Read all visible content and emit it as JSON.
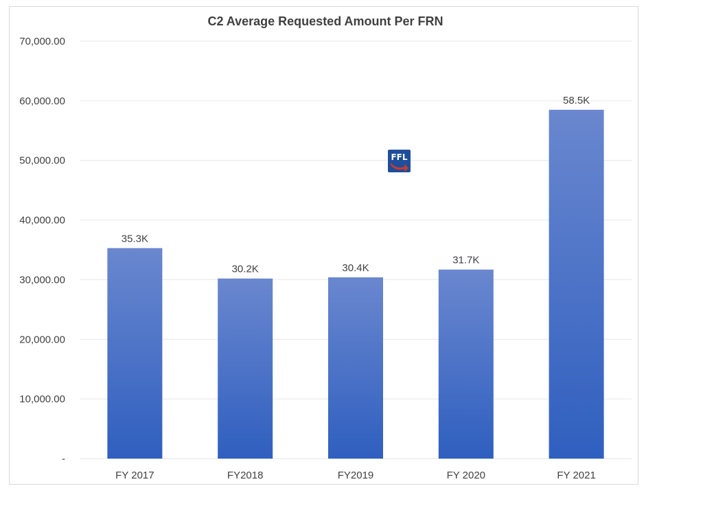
{
  "chart_data": {
    "type": "bar",
    "title": "C2 Average Requested Amount Per FRN",
    "categories": [
      "FY 2017",
      "FY2018",
      "FY2019",
      "FY 2020",
      "FY 2021"
    ],
    "values": [
      35300,
      30200,
      30400,
      31700,
      58500
    ],
    "data_labels": [
      "35.3K",
      "30.2K",
      "30.4K",
      "31.7K",
      "58.5K"
    ],
    "ylim": [
      0,
      70000
    ],
    "yticks": [
      0,
      10000,
      20000,
      30000,
      40000,
      50000,
      60000,
      70000
    ],
    "ytick_labels": [
      "-",
      "10,000.00",
      "20,000.00",
      "30,000.00",
      "40,000.00",
      "50,000.00",
      "60,000.00",
      "70,000.00"
    ],
    "grid": true,
    "legend": "none",
    "colors": {
      "bar_top": "#6a87cf",
      "bar_bottom": "#2f5fbf",
      "grid": "#e6e6e6",
      "text": "#404040"
    }
  },
  "logo": {
    "text": "FFL",
    "bg": "#1f4e9a",
    "arrow": "#d03a2a",
    "icon": "ffl-logo-icon"
  }
}
